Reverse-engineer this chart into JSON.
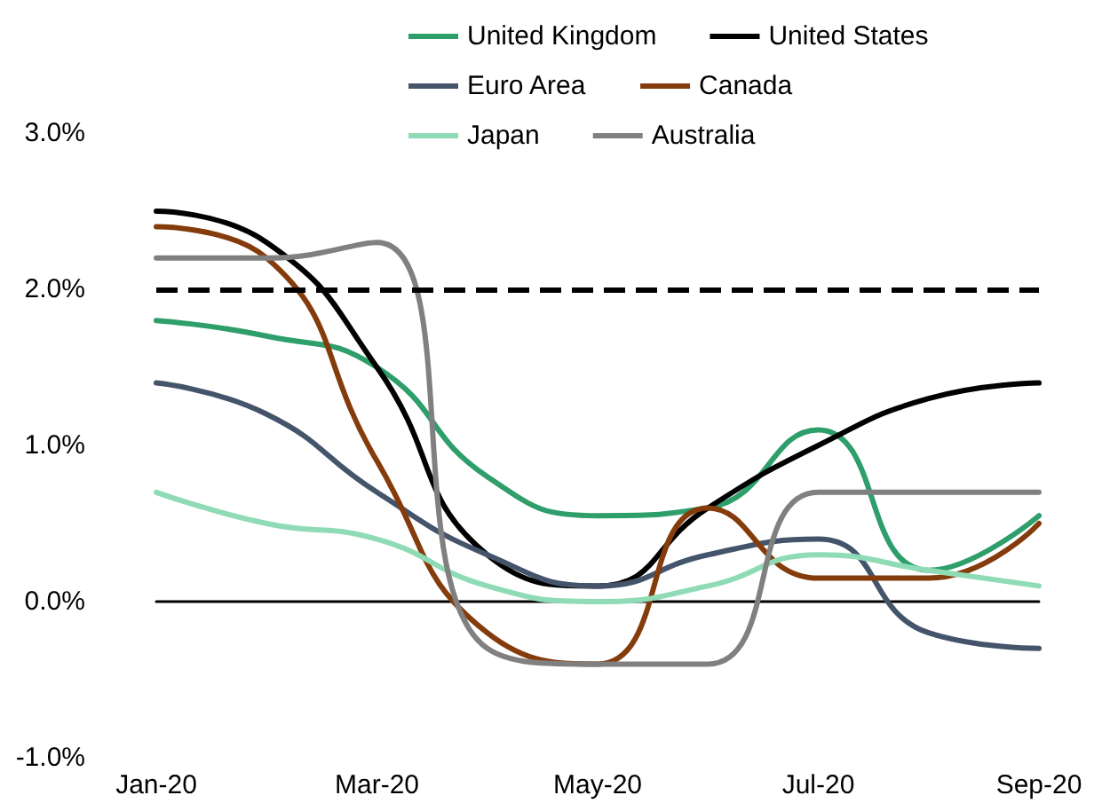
{
  "chart_data": {
    "type": "line",
    "categories": [
      "Jan-20",
      null,
      "Mar-20",
      null,
      "May-20",
      null,
      "Jul-20",
      null,
      "Sep-20"
    ],
    "series": [
      {
        "name": "United Kingdom",
        "color": "#2e9e6b",
        "values": [
          1.8,
          1.7,
          1.5,
          0.8,
          0.55,
          0.6,
          1.1,
          0.2,
          0.55
        ]
      },
      {
        "name": "United States",
        "color": "#000000",
        "values": [
          2.5,
          2.3,
          1.5,
          0.3,
          0.1,
          0.6,
          1.0,
          1.3,
          1.4
        ]
      },
      {
        "name": "Euro Area",
        "color": "#44546a",
        "values": [
          1.4,
          1.2,
          0.7,
          0.3,
          0.1,
          0.3,
          0.4,
          -0.2,
          -0.3
        ]
      },
      {
        "name": "Canada",
        "color": "#843c0c",
        "values": [
          2.4,
          2.2,
          0.9,
          -0.2,
          -0.4,
          0.6,
          0.15,
          0.15,
          0.5
        ]
      },
      {
        "name": "Japan",
        "color": "#8fdbb5",
        "values": [
          0.7,
          0.5,
          0.4,
          0.1,
          0.0,
          0.1,
          0.3,
          0.2,
          0.1
        ]
      },
      {
        "name": "Australia",
        "color": "#808080",
        "values": [
          2.2,
          2.2,
          2.3,
          -0.3,
          -0.4,
          -0.4,
          0.7,
          0.7,
          0.7
        ]
      }
    ],
    "ylim": [
      -1,
      3
    ],
    "yticks": [
      {
        "value": -1,
        "label": "-1.0%"
      },
      {
        "value": 0,
        "label": "0.0%"
      },
      {
        "value": 1,
        "label": "1.0%"
      },
      {
        "value": 2,
        "label": "2.0%"
      },
      {
        "value": 3,
        "label": "3.0%"
      }
    ],
    "ref_lines": [
      {
        "axis": "y",
        "value": 2,
        "color": "#000000",
        "line_style": "dashed"
      }
    ],
    "grid": false,
    "legend": "top right",
    "marker": "none",
    "line_style": "solid"
  }
}
